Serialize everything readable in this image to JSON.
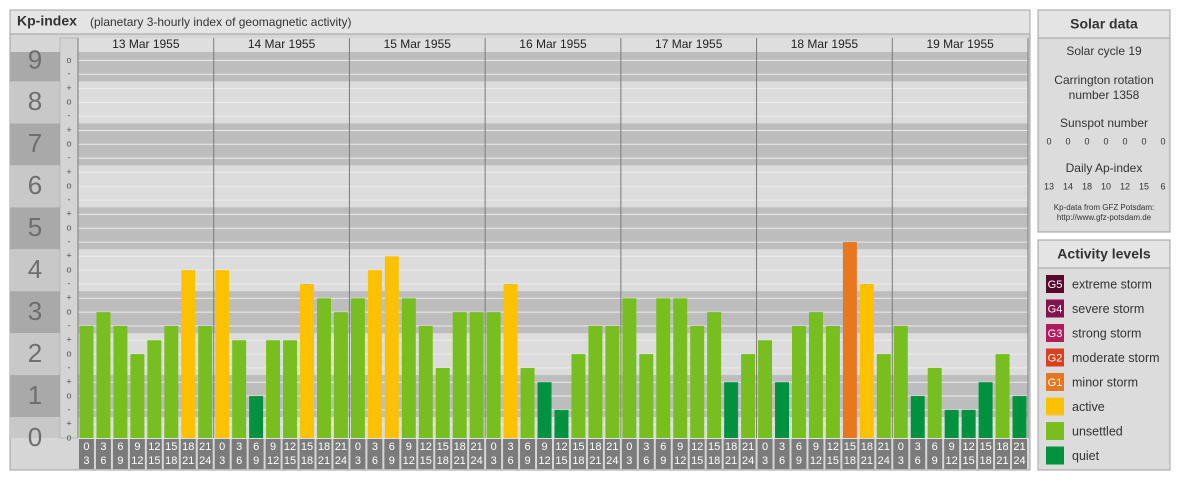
{
  "chart_data": {
    "type": "bar",
    "title": "Kp-index",
    "subtitle": "(planetary 3-hourly index of geomagnetic activity)",
    "hours": [
      [
        "0",
        "3"
      ],
      [
        "3",
        "6"
      ],
      [
        "6",
        "9"
      ],
      [
        "9",
        "12"
      ],
      [
        "12",
        "15"
      ],
      [
        "15",
        "18"
      ],
      [
        "18",
        "21"
      ],
      [
        "21",
        "24"
      ]
    ],
    "days": [
      {
        "date": "13 Mar 1955",
        "values": [
          2.67,
          3,
          2.67,
          2,
          2.33,
          2.67,
          4,
          2.67
        ],
        "colors": [
          "#76bf1f",
          "#76bf1f",
          "#76bf1f",
          "#76bf1f",
          "#76bf1f",
          "#76bf1f",
          "#fcc200",
          "#76bf1f"
        ]
      },
      {
        "date": "14 Mar 1955",
        "values": [
          4,
          2.33,
          1,
          2.33,
          2.33,
          3.67,
          3.33,
          3
        ],
        "colors": [
          "#fcc200",
          "#76bf1f",
          "#00923f",
          "#76bf1f",
          "#76bf1f",
          "#fcc200",
          "#76bf1f",
          "#76bf1f"
        ]
      },
      {
        "date": "15 Mar 1955",
        "values": [
          3.33,
          4,
          4.33,
          3.33,
          2.67,
          1.67,
          3,
          3
        ],
        "colors": [
          "#76bf1f",
          "#fcc200",
          "#fcc200",
          "#76bf1f",
          "#76bf1f",
          "#76bf1f",
          "#76bf1f",
          "#76bf1f"
        ]
      },
      {
        "date": "16 Mar 1955",
        "values": [
          3,
          3.67,
          1.67,
          1.33,
          0.67,
          2,
          2.67,
          2.67
        ],
        "colors": [
          "#76bf1f",
          "#fcc200",
          "#76bf1f",
          "#00923f",
          "#00923f",
          "#76bf1f",
          "#76bf1f",
          "#76bf1f"
        ]
      },
      {
        "date": "17 Mar 1955",
        "values": [
          3.33,
          2,
          3.33,
          3.33,
          2.67,
          3,
          1.33,
          2
        ],
        "colors": [
          "#76bf1f",
          "#76bf1f",
          "#76bf1f",
          "#76bf1f",
          "#76bf1f",
          "#76bf1f",
          "#00923f",
          "#76bf1f"
        ]
      },
      {
        "date": "18 Mar 1955",
        "values": [
          2.33,
          1.33,
          2.67,
          3,
          2.67,
          4.67,
          3.67,
          2
        ],
        "colors": [
          "#76bf1f",
          "#00923f",
          "#76bf1f",
          "#76bf1f",
          "#76bf1f",
          "#e8771e",
          "#fcc200",
          "#76bf1f"
        ]
      },
      {
        "date": "19 Mar 1955",
        "values": [
          2.67,
          1,
          1.67,
          0.67,
          0.67,
          1.33,
          2,
          1
        ],
        "colors": [
          "#76bf1f",
          "#00923f",
          "#76bf1f",
          "#00923f",
          "#00923f",
          "#00923f",
          "#76bf1f",
          "#00923f"
        ]
      }
    ],
    "ylim": [
      0,
      9.2
    ],
    "yticks": [
      0,
      1,
      2,
      3,
      4,
      5,
      6,
      7,
      8,
      9
    ],
    "yticks_minor": [
      {
        "value": 0,
        "label": "o"
      },
      {
        "value": 0.33,
        "label": "+"
      },
      {
        "value": 0.67,
        "label": "-"
      },
      {
        "value": 1,
        "label": "o"
      },
      {
        "value": 1.33,
        "label": "+"
      },
      {
        "value": 1.67,
        "label": "-"
      },
      {
        "value": 2,
        "label": "o"
      },
      {
        "value": 2.33,
        "label": "+"
      },
      {
        "value": 2.67,
        "label": "-"
      },
      {
        "value": 3,
        "label": "o"
      },
      {
        "value": 3.33,
        "label": "+"
      },
      {
        "value": 3.67,
        "label": "-"
      },
      {
        "value": 4,
        "label": "o"
      },
      {
        "value": 4.33,
        "label": "+"
      },
      {
        "value": 4.67,
        "label": "-"
      },
      {
        "value": 5,
        "label": "o"
      },
      {
        "value": 5.33,
        "label": "+"
      },
      {
        "value": 5.67,
        "label": "-"
      },
      {
        "value": 6,
        "label": "o"
      },
      {
        "value": 6.33,
        "label": "+"
      },
      {
        "value": 6.67,
        "label": "-"
      },
      {
        "value": 7,
        "label": "o"
      },
      {
        "value": 7.33,
        "label": "+"
      },
      {
        "value": 7.67,
        "label": "-"
      },
      {
        "value": 8,
        "label": "o"
      },
      {
        "value": 8.33,
        "label": "+"
      },
      {
        "value": 8.67,
        "label": "-"
      },
      {
        "value": 9,
        "label": "o"
      }
    ],
    "grid": true
  },
  "solar_data": {
    "title": "Solar data",
    "solar_cycle": "Solar cycle 19",
    "carrington": [
      "Carrington rotation",
      "number 1358"
    ],
    "sunspot_title": "Sunspot number",
    "sunspot": [
      0,
      0,
      0,
      0,
      0,
      0,
      0
    ],
    "ap_title": "Daily Ap-index",
    "ap": [
      13,
      14,
      18,
      10,
      12,
      15,
      6
    ],
    "source": [
      "Kp-data from GFZ Potsdam:",
      "http://www.gfz-potsdam.de"
    ]
  },
  "activity_levels": {
    "title": "Activity levels",
    "levels": [
      {
        "badge": "G5",
        "name": "extreme storm",
        "color": "#5a0a2c"
      },
      {
        "badge": "G4",
        "name": "severe storm",
        "color": "#85114f"
      },
      {
        "badge": "G3",
        "name": "strong storm",
        "color": "#b01d5d"
      },
      {
        "badge": "G2",
        "name": "moderate storm",
        "color": "#d9411e"
      },
      {
        "badge": "G1",
        "name": "minor storm",
        "color": "#e8771e"
      },
      {
        "badge": null,
        "name": "active",
        "color": "#fcc200"
      },
      {
        "badge": null,
        "name": "unsettled",
        "color": "#76bf1f"
      },
      {
        "badge": null,
        "name": "quiet",
        "color": "#00923f"
      }
    ]
  }
}
